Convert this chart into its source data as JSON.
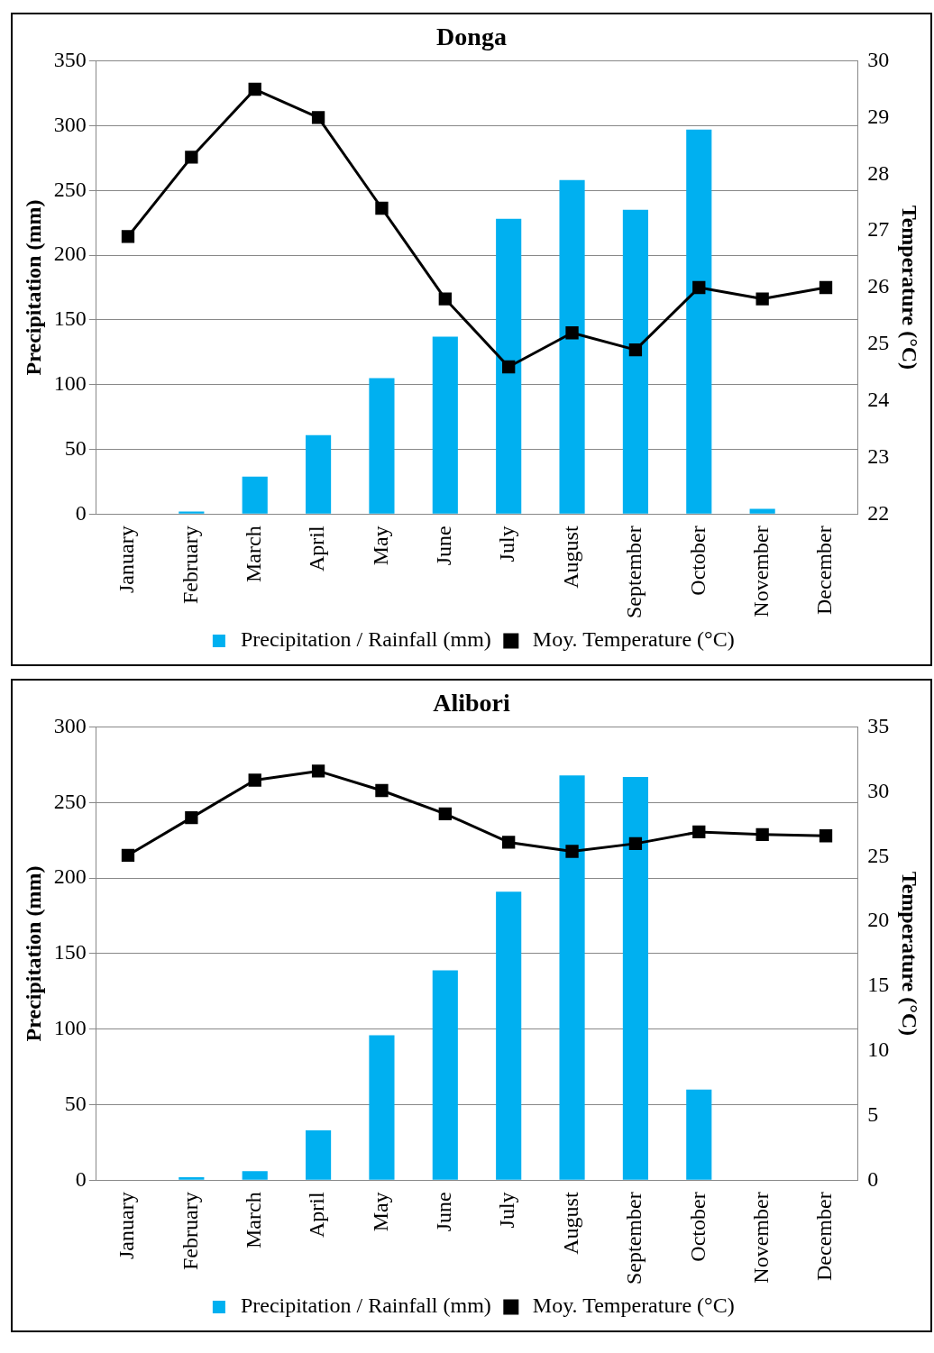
{
  "chart_data": [
    {
      "type": "bar",
      "title": "Donga",
      "categories": [
        "January",
        "February",
        "March",
        "April",
        "May",
        "June",
        "July",
        "August",
        "September",
        "October",
        "November",
        "December"
      ],
      "ylabel": "Precipitation (mm)",
      "y2label": "Temperature (°C)",
      "ylim": [
        0,
        350
      ],
      "yticks": [
        0,
        50,
        100,
        150,
        200,
        250,
        300,
        350
      ],
      "y2lim": [
        22,
        30
      ],
      "y2ticks": [
        22,
        23,
        24,
        25,
        26,
        27,
        28,
        29,
        30
      ],
      "grid": "y",
      "legend": "bottom",
      "series": [
        {
          "name": "Precipitation / Rainfall (mm)",
          "color": "#00b0f0",
          "values": [
            0,
            2,
            29,
            61,
            105,
            137,
            228,
            258,
            235,
            297,
            4,
            0
          ]
        },
        {
          "name": "Moy. Temperature (°C)",
          "type": "line",
          "axis": "y2",
          "color": "#000000",
          "marker": "square",
          "values": [
            26.9,
            28.3,
            29.5,
            29.0,
            27.4,
            25.8,
            24.6,
            25.2,
            24.9,
            26.0,
            25.8,
            26.0
          ]
        }
      ]
    },
    {
      "type": "bar",
      "title": "Alibori",
      "categories": [
        "January",
        "February",
        "March",
        "April",
        "May",
        "June",
        "July",
        "August",
        "September",
        "October",
        "November",
        "December"
      ],
      "ylabel": "Precipitation (mm)",
      "y2label": "Temperature (°C)",
      "ylim": [
        0,
        300
      ],
      "yticks": [
        0,
        50,
        100,
        150,
        200,
        250,
        300
      ],
      "y2lim": [
        0,
        35
      ],
      "y2ticks": [
        0,
        5,
        10,
        15,
        20,
        25,
        30,
        35
      ],
      "grid": "y",
      "legend": "bottom",
      "series": [
        {
          "name": "Precipitation / Rainfall (mm)",
          "color": "#00b0f0",
          "values": [
            0,
            2,
            6,
            33,
            96,
            139,
            191,
            268,
            267,
            60,
            0,
            0
          ]
        },
        {
          "name": "Moy. Temperature (°C)",
          "type": "line",
          "axis": "y2",
          "color": "#000000",
          "marker": "square",
          "values": [
            25.1,
            28.0,
            30.9,
            31.6,
            30.1,
            28.3,
            26.1,
            25.4,
            26.0,
            26.9,
            26.7,
            26.6
          ]
        }
      ]
    }
  ]
}
